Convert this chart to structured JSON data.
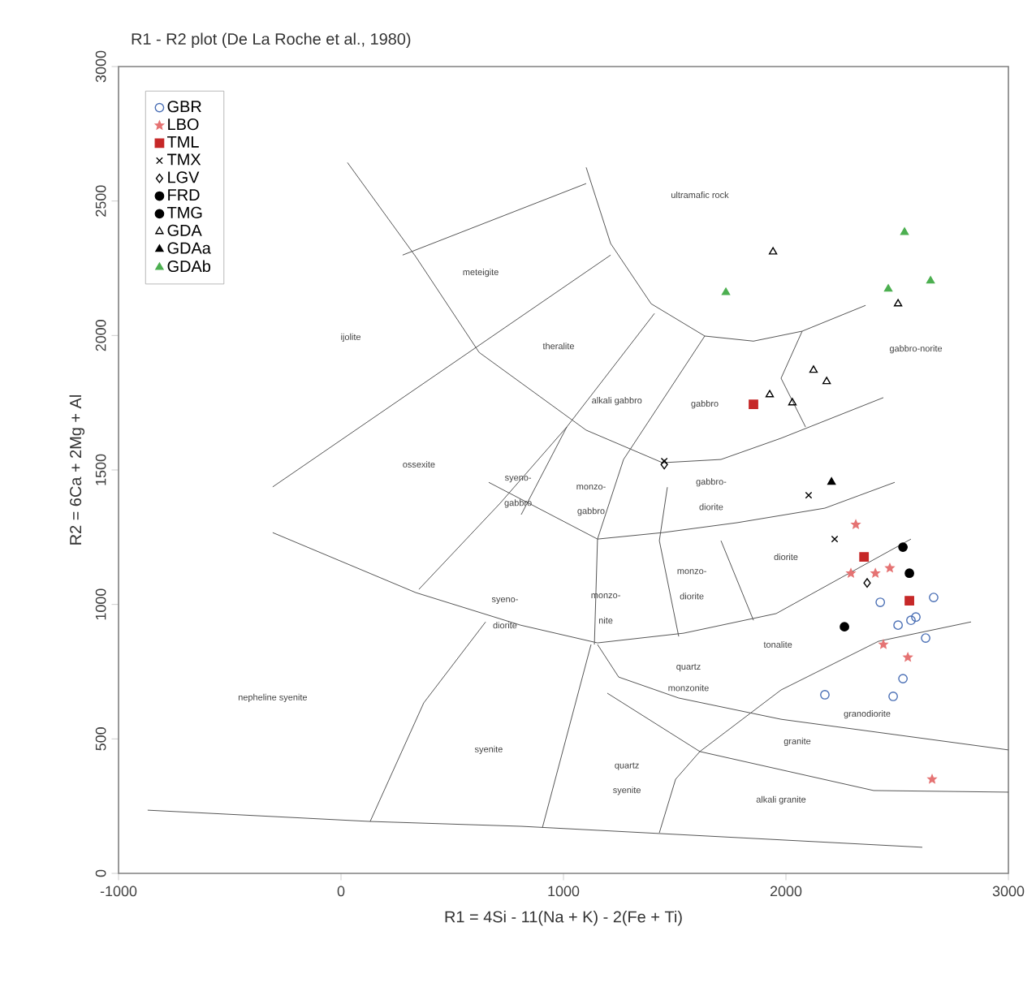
{
  "chart_data": {
    "type": "scatter",
    "title": "R1 - R2 plot (De La Roche et al., 1980)",
    "xlabel": "R1 = 4Si - 11(Na + K) - 2(Fe + Ti)",
    "ylabel": "R2 = 6Ca + 2Mg + Al",
    "xlim": [
      -1000,
      3000
    ],
    "ylim": [
      0,
      3000
    ],
    "xticks": [
      -1000,
      0,
      1000,
      2000,
      3000
    ],
    "yticks": [
      0,
      500,
      1000,
      1500,
      2000,
      2500,
      3000
    ],
    "legend": "top left",
    "series": [
      {
        "type": "line",
        "color": "#555555",
        "x": [
          29,
          336,
          621,
          1102,
          1445,
          1708,
          1978,
          2438
        ],
        "values": [
          2643,
          2293,
          1937,
          1648,
          1527,
          1539,
          1618,
          1769
        ]
      },
      {
        "type": "line",
        "color": "#555555",
        "x": [
          1102,
          1212,
          1394,
          1635,
          1854,
          2073,
          2358
        ],
        "values": [
          2625,
          2342,
          2118,
          1998,
          1979,
          2016,
          2112
        ]
      },
      {
        "type": "line",
        "color": "#555555",
        "x": [
          277,
          1102
        ],
        "values": [
          2299,
          2565
        ]
      },
      {
        "type": "line",
        "color": "#555555",
        "x": [
          -307,
          1212
        ],
        "values": [
          1437,
          2299
        ]
      },
      {
        "type": "line",
        "color": "#555555",
        "x": [
          -307,
          336,
          807,
          1153,
          1540,
          1956,
          2562
        ],
        "values": [
          1267,
          1044,
          923,
          857,
          893,
          966,
          1243
        ]
      },
      {
        "type": "line",
        "color": "#555555",
        "x": [
          1431,
          1504,
          1613,
          1978,
          2416,
          2832
        ],
        "values": [
          151,
          350,
          453,
          682,
          863,
          935
        ]
      },
      {
        "type": "line",
        "color": "#555555",
        "x": [
          1153,
          1248,
          1518,
          1978,
          3000
        ],
        "values": [
          851,
          730,
          652,
          573,
          459
        ]
      },
      {
        "type": "line",
        "color": "#555555",
        "x": [
          1197,
          1613,
          2394,
          3000
        ],
        "values": [
          670,
          453,
          308,
          302
        ]
      },
      {
        "type": "line",
        "color": "#555555",
        "x": [
          -869,
          131,
          810,
          2613
        ],
        "values": [
          235,
          193,
          175,
          97
        ]
      },
      {
        "type": "line",
        "color": "#555555",
        "x": [
          131,
          372,
          650
        ],
        "values": [
          193,
          634,
          935
        ]
      },
      {
        "type": "line",
        "color": "#555555",
        "x": [
          905,
          1124
        ],
        "values": [
          169,
          851
        ]
      },
      {
        "type": "line",
        "color": "#555555",
        "x": [
          350,
          715,
          1015
        ],
        "values": [
          1056,
          1376,
          1660
        ]
      },
      {
        "type": "line",
        "color": "#555555",
        "x": [
          664,
          1153,
          1445,
          1781,
          2175,
          2489
        ],
        "values": [
          1454,
          1243,
          1267,
          1304,
          1358,
          1454
        ]
      },
      {
        "type": "line",
        "color": "#555555",
        "x": [
          1635,
          1270,
          1153,
          1139
        ],
        "values": [
          1998,
          1539,
          1243,
          851
        ]
      },
      {
        "type": "line",
        "color": "#555555",
        "x": [
          1467,
          1431,
          1518
        ],
        "values": [
          1436,
          1237,
          881
        ]
      },
      {
        "type": "line",
        "color": "#555555",
        "x": [
          1708,
          1854
        ],
        "values": [
          1237,
          941
        ]
      },
      {
        "type": "line",
        "color": "#555555",
        "x": [
          2073,
          1978,
          2088
        ],
        "values": [
          2016,
          1841,
          1660
        ]
      },
      {
        "type": "line",
        "color": "#555555",
        "x": [
          1409,
          1015,
          810
        ],
        "values": [
          2082,
          1660,
          1334
        ]
      },
      {
        "name": "GBR",
        "color": "#4a6fb5",
        "marker": "circle",
        "x": [
          2424,
          2664,
          2504,
          2562,
          2628,
          2526,
          2482,
          2175,
          2584
        ],
        "values": [
          1008,
          1026,
          923,
          941,
          875,
          724,
          658,
          664,
          953
        ]
      },
      {
        "name": "LBO",
        "color": "#e57373",
        "marker": "star",
        "x": [
          2314,
          2292,
          2467,
          2438,
          2548,
          2657,
          2402
        ],
        "values": [
          1297,
          1116,
          1135,
          851,
          803,
          350,
          1116
        ]
      },
      {
        "name": "TML",
        "color": "#c62828",
        "marker": "square*",
        "x": [
          1854,
          2351,
          2555
        ],
        "values": [
          1744,
          1177,
          1014
        ]
      },
      {
        "name": "TMX",
        "color": "#000000",
        "marker": "cross",
        "x": [
          1453,
          2102,
          2219
        ],
        "values": [
          1533,
          1406,
          1243
        ]
      },
      {
        "name": "LGV",
        "color": "#000000",
        "marker": "diamond",
        "x": [
          2365,
          1453
        ],
        "values": [
          1080,
          1520
        ]
      },
      {
        "name": "FRD",
        "color": "#000000",
        "marker": "circle*",
        "x": [
          2263
        ],
        "values": [
          917
        ]
      },
      {
        "name": "TMG",
        "color": "#000000",
        "marker": "circle*",
        "x": [
          2526,
          2555
        ],
        "values": [
          1213,
          1116
        ]
      },
      {
        "name": "GDA",
        "color": "#000000",
        "marker": "triangle",
        "x": [
          1942,
          2504,
          1927,
          2029,
          2124,
          2183
        ],
        "values": [
          2311,
          2118,
          1780,
          1750,
          1871,
          1829
        ]
      },
      {
        "name": "GDAa",
        "color": "#000000",
        "marker": "triangle*",
        "x": [
          2205
        ],
        "values": [
          1455
        ]
      },
      {
        "name": "GDAb",
        "color": "#4caf50",
        "marker": "triangle*",
        "x": [
          1730,
          2533,
          2650,
          2460
        ],
        "values": [
          2160,
          2384,
          2203,
          2173
        ]
      }
    ],
    "annotations": [
      "ultramafic rock",
      "meteigite",
      "ijolite",
      "theralite",
      "alkali gabbro",
      "gabbro",
      "gabbro-norite",
      "ossexite",
      "syeno-",
      "gabbro",
      "monzo-",
      "gabbro",
      "gabbro-",
      "diorite",
      "syeno-",
      "diorite",
      "monzo-",
      "nite",
      "monzo-",
      "diorite",
      "diorite",
      "tonalite",
      "quartz",
      "monzonite",
      "granodiorite",
      "granite",
      "quartz",
      "syenite",
      "alkali granite",
      "syenite",
      "nepheline syenite"
    ]
  }
}
